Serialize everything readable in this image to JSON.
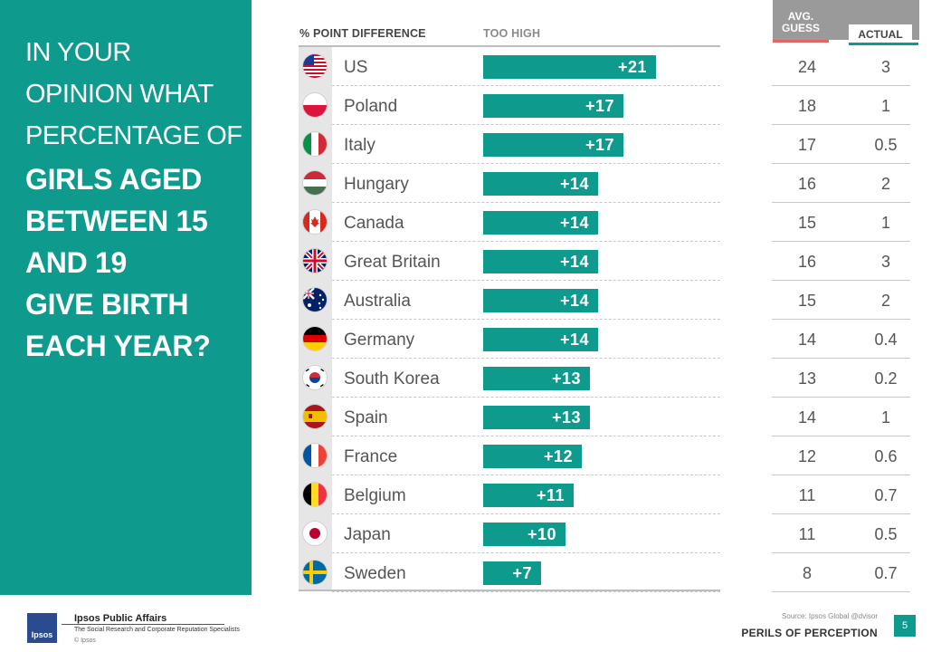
{
  "question": {
    "lines": [
      "IN YOUR",
      "OPINION WHAT",
      "PERCENTAGE OF"
    ],
    "bold_lines": [
      "GIRLS AGED",
      "BETWEEN 15",
      "AND 19",
      "GIVE BIRTH",
      "EACH YEAR?"
    ]
  },
  "headers": {
    "point_difference": "% POINT DIFFERENCE",
    "too_high": "TOO HIGH",
    "avg_guess": "AVG. GUESS",
    "actual": "ACTUAL"
  },
  "chart_data": {
    "type": "bar",
    "categories": [
      "US",
      "Poland",
      "Italy",
      "Hungary",
      "Canada",
      "Great Britain",
      "Australia",
      "Germany",
      "South Korea",
      "Spain",
      "France",
      "Belgium",
      "Japan",
      "Sweden"
    ],
    "values": [
      21,
      17,
      17,
      14,
      14,
      14,
      14,
      14,
      13,
      13,
      12,
      11,
      10,
      7
    ],
    "value_labels": [
      "+21",
      "+17",
      "+17",
      "+14",
      "+14",
      "+14",
      "+14",
      "+14",
      "+13",
      "+13",
      "+12",
      "+11",
      "+10",
      "+7"
    ],
    "avg_guess": [
      "24",
      "18",
      "17",
      "16",
      "15",
      "16",
      "15",
      "14",
      "13",
      "14",
      "12",
      "11",
      "11",
      "8"
    ],
    "actual": [
      "3",
      "1",
      "0.5",
      "2",
      "1",
      "3",
      "2",
      "0.4",
      "0.2",
      "1",
      "0.6",
      "0.7",
      "0.5",
      "0.7"
    ],
    "flags": [
      "us-flag",
      "poland-flag",
      "italy-flag",
      "hungary-flag",
      "canada-flag",
      "great-britain-flag",
      "australia-flag",
      "germany-flag",
      "south-korea-flag",
      "spain-flag",
      "france-flag",
      "belgium-flag",
      "japan-flag",
      "sweden-flag"
    ],
    "bar_color": "#0f9a8e"
  },
  "colors": {
    "brand_teal": "#0f9a8e",
    "guess_accent": "#e06666",
    "header_grey": "#9a9a9a"
  },
  "footer": {
    "brand": "Ipsos Public Affairs",
    "tagline": "The Social Research and Corporate Reputation Specialists",
    "copyright": "© Ipsos",
    "logo_text": "Ipsos",
    "source": "Source: Ipsos Global @dvisor",
    "perils": "PERILS OF PERCEPTION",
    "page_number": "5"
  }
}
